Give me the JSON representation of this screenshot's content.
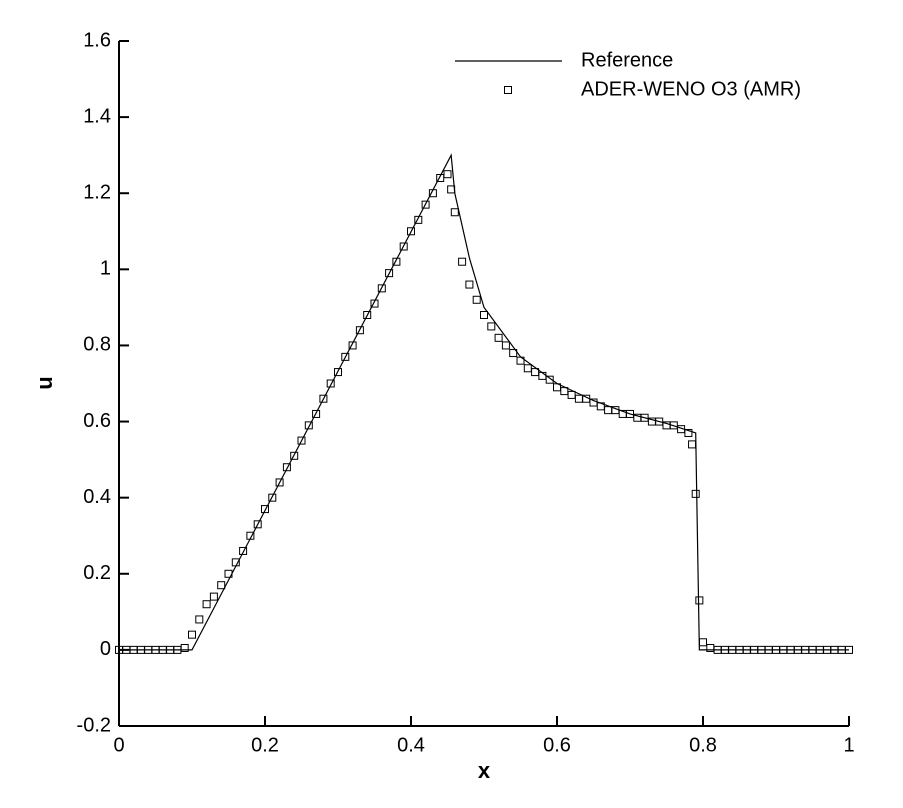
{
  "chart_data": {
    "type": "line",
    "x_label": "x",
    "y_label": "u",
    "xlim": [
      0,
      1
    ],
    "ylim": [
      -0.2,
      1.6
    ],
    "xticks": [
      0,
      0.2,
      0.4,
      0.6,
      0.8,
      1
    ],
    "yticks": [
      -0.2,
      0,
      0.2,
      0.4,
      0.6,
      0.8,
      1,
      1.2,
      1.4,
      1.6
    ],
    "legend": "upper right",
    "series": [
      {
        "name": "Reference",
        "color": "#000000",
        "style": "line",
        "x": [
          0,
          0.1,
          0.455,
          0.46,
          0.48,
          0.5,
          0.55,
          0.6,
          0.65,
          0.7,
          0.75,
          0.79,
          0.795,
          1
        ],
        "values": [
          0,
          0,
          1.3,
          1.2,
          1.03,
          0.9,
          0.77,
          0.7,
          0.655,
          0.62,
          0.595,
          0.57,
          0,
          0
        ]
      },
      {
        "name": "ADER-WENO O3 (AMR)",
        "color": "#000000",
        "style": "markers",
        "x": [
          0,
          0.01,
          0.02,
          0.03,
          0.04,
          0.05,
          0.06,
          0.07,
          0.08,
          0.09,
          0.1,
          0.11,
          0.12,
          0.13,
          0.14,
          0.15,
          0.16,
          0.17,
          0.18,
          0.19,
          0.2,
          0.21,
          0.22,
          0.23,
          0.24,
          0.25,
          0.26,
          0.27,
          0.28,
          0.29,
          0.3,
          0.31,
          0.32,
          0.33,
          0.34,
          0.35,
          0.36,
          0.37,
          0.38,
          0.39,
          0.4,
          0.41,
          0.42,
          0.43,
          0.44,
          0.45,
          0.455,
          0.46,
          0.47,
          0.48,
          0.49,
          0.5,
          0.51,
          0.52,
          0.53,
          0.54,
          0.55,
          0.56,
          0.57,
          0.58,
          0.59,
          0.6,
          0.61,
          0.62,
          0.63,
          0.64,
          0.65,
          0.66,
          0.67,
          0.68,
          0.69,
          0.7,
          0.71,
          0.72,
          0.73,
          0.74,
          0.75,
          0.76,
          0.77,
          0.78,
          0.785,
          0.79,
          0.795,
          0.8,
          0.81,
          0.82,
          0.83,
          0.84,
          0.85,
          0.86,
          0.87,
          0.88,
          0.89,
          0.9,
          0.91,
          0.92,
          0.93,
          0.94,
          0.95,
          0.96,
          0.97,
          0.98,
          0.99,
          1
        ],
        "values": [
          0,
          0,
          0,
          0,
          0,
          0,
          0,
          0,
          0,
          0.005,
          0.04,
          0.08,
          0.12,
          0.14,
          0.17,
          0.2,
          0.23,
          0.26,
          0.3,
          0.33,
          0.37,
          0.4,
          0.44,
          0.48,
          0.51,
          0.55,
          0.59,
          0.62,
          0.66,
          0.7,
          0.73,
          0.77,
          0.8,
          0.84,
          0.88,
          0.91,
          0.95,
          0.99,
          1.02,
          1.06,
          1.1,
          1.13,
          1.17,
          1.2,
          1.24,
          1.25,
          1.21,
          1.15,
          1.02,
          0.96,
          0.92,
          0.88,
          0.85,
          0.82,
          0.8,
          0.78,
          0.76,
          0.74,
          0.73,
          0.72,
          0.71,
          0.69,
          0.68,
          0.67,
          0.66,
          0.66,
          0.65,
          0.64,
          0.63,
          0.63,
          0.62,
          0.62,
          0.61,
          0.61,
          0.6,
          0.6,
          0.59,
          0.59,
          0.58,
          0.57,
          0.54,
          0.41,
          0.13,
          0.02,
          0.005,
          0,
          0,
          0,
          0,
          0,
          0,
          0,
          0,
          0,
          0,
          0,
          0,
          0,
          0,
          0,
          0,
          0,
          0,
          0
        ]
      }
    ]
  }
}
